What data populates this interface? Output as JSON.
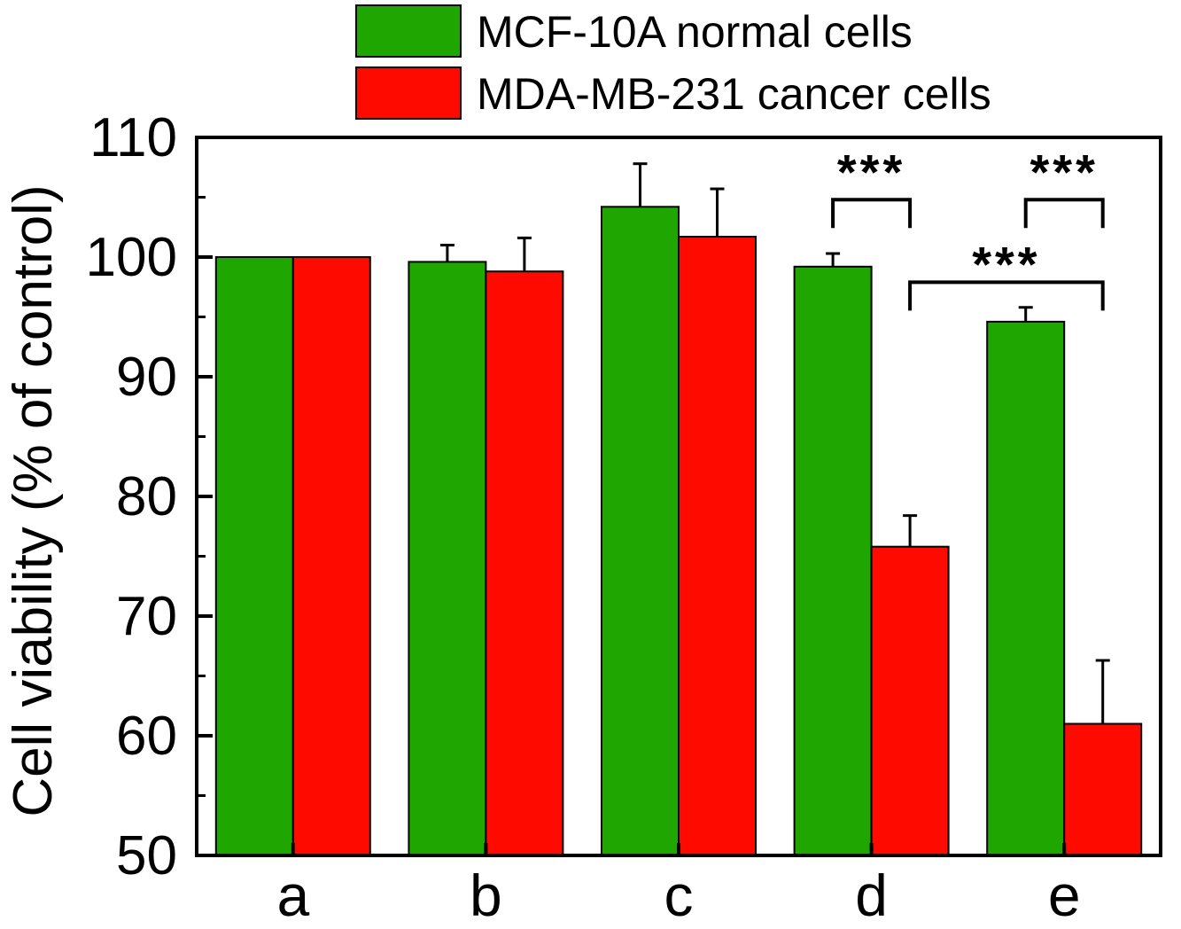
{
  "colors": {
    "series_normal": "#1fa600",
    "series_cancer": "#ff0a00",
    "axis": "#000000"
  },
  "chart_data": {
    "type": "bar",
    "title": "",
    "xlabel": "",
    "ylabel": "Cell viability (% of control)",
    "ylim": [
      50,
      110
    ],
    "yticks": [
      "50",
      "60",
      "70",
      "80",
      "90",
      "100",
      "110"
    ],
    "categories": [
      "a",
      "b",
      "c",
      "d",
      "e"
    ],
    "series": [
      {
        "name": "MCF-10A normal cells",
        "color": "#1fa600",
        "values": [
          100,
          99.6,
          104.2,
          99.2,
          94.6
        ],
        "errors": [
          0,
          1.4,
          3.6,
          1.1,
          1.2
        ]
      },
      {
        "name": "MDA-MB-231 cancer cells",
        "color": "#ff0a00",
        "values": [
          100,
          98.8,
          101.7,
          75.8,
          61.0
        ],
        "errors": [
          0,
          2.8,
          4.0,
          2.6,
          5.3
        ]
      }
    ],
    "legend_position": "top",
    "grid": false,
    "annotations": [
      {
        "text": "***",
        "type": "bracket",
        "category": "d",
        "from_series": 0,
        "to_series": 1,
        "level": 104.8,
        "label_y": 107.3
      },
      {
        "text": "***",
        "type": "bracket",
        "category": "e",
        "from_series": 0,
        "to_series": 1,
        "level": 104.8,
        "label_y": 107.3
      },
      {
        "text": "***",
        "type": "bracket_between",
        "from": {
          "category": "d",
          "series": 1
        },
        "to": {
          "category": "e",
          "series": 1
        },
        "level": 97.9,
        "label_y": 99.6
      }
    ]
  }
}
